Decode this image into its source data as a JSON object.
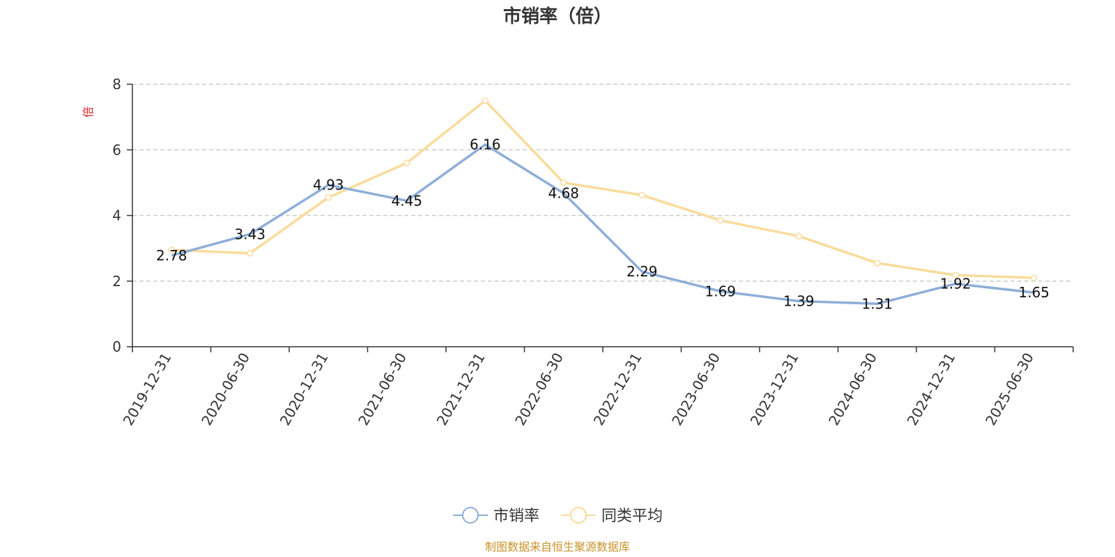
{
  "chart_data": {
    "type": "line",
    "title": "市销率（倍）",
    "ylabel": "倍",
    "ylim": [
      0,
      8
    ],
    "yticks": [
      0,
      2,
      4,
      6,
      8
    ],
    "grid": "horizontal-dashed",
    "legend_position": "bottom-center",
    "categories": [
      "2019-12-31",
      "2020-06-30",
      "2020-12-31",
      "2021-06-30",
      "2021-12-31",
      "2022-06-30",
      "2022-12-31",
      "2023-06-30",
      "2023-12-31",
      "2024-06-30",
      "2024-12-31",
      "2025-06-30"
    ],
    "series": [
      {
        "name": "市销率",
        "color": "#8eaed8",
        "values": [
          2.78,
          3.43,
          4.93,
          4.45,
          6.16,
          4.68,
          2.29,
          1.69,
          1.39,
          1.31,
          1.92,
          1.65
        ],
        "labels": [
          "2.78",
          "3.43",
          "4.93",
          "4.45",
          "6.16",
          "4.68",
          "2.29",
          "1.69",
          "1.39",
          "1.31",
          "1.92",
          "1.65"
        ]
      },
      {
        "name": "同类平均",
        "color": "#fadb9a",
        "values": [
          2.95,
          2.85,
          4.55,
          5.6,
          7.5,
          5.0,
          4.62,
          3.85,
          3.37,
          2.55,
          2.18,
          2.1
        ]
      }
    ],
    "source": "制图数据来自恒生聚源数据库"
  }
}
